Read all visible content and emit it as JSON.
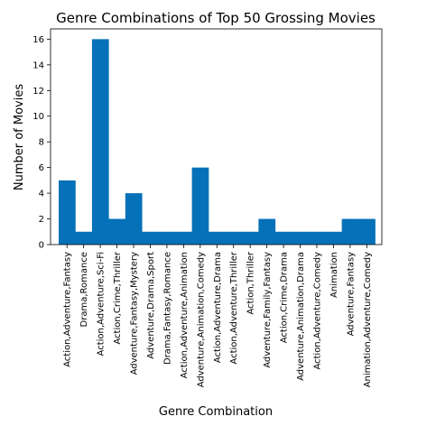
{
  "chart_data": {
    "type": "bar",
    "title": "Genre Combinations of Top 50 Grossing Movies",
    "xlabel": "Genre Combination",
    "ylabel": "Number of Movies",
    "ylim": [
      0,
      16.8
    ],
    "yticks": [
      0,
      2,
      4,
      6,
      8,
      10,
      12,
      14,
      16
    ],
    "grid": false,
    "bar_color": "#0571b8",
    "categories": [
      "Action,Adventure,Fantasy",
      "Drama,Romance",
      "Action,Adventure,Sci-Fi",
      "Action,Crime,Thriller",
      "Adventure,Fantasy,Mystery",
      "Adventure,Drama,Sport",
      "Drama,Fantasy,Romance",
      "Action,Adventure,Animation",
      "Adventure,Animation,Comedy",
      "Action,Adventure,Drama",
      "Action,Adventure,Thriller",
      "Action,Thriller",
      "Adventure,Family,Fantasy",
      "Action,Crime,Drama",
      "Adventure,Animation,Drama",
      "Action,Adventure,Comedy",
      "Animation",
      "Adventure,Fantasy",
      "Animation,Adventure,Comedy"
    ],
    "values": [
      5,
      1,
      16,
      2,
      4,
      1,
      1,
      1,
      6,
      1,
      1,
      1,
      2,
      1,
      1,
      1,
      1,
      2,
      2
    ]
  }
}
